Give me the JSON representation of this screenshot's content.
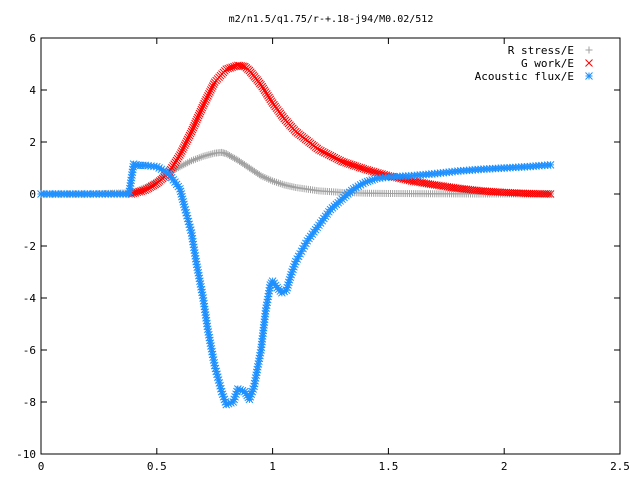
{
  "chart_data": {
    "type": "scatter",
    "title": "m2/n1.5/q1.75/r-+.18-j94/M0.02/512",
    "xlabel": "",
    "ylabel": "",
    "xlim": [
      0,
      2.5
    ],
    "ylim": [
      -10,
      6
    ],
    "x_ticks": [
      "0",
      "0.5",
      "1",
      "1.5",
      "2",
      "2.5"
    ],
    "y_ticks": [
      "-10",
      "-8",
      "-6",
      "-4",
      "-2",
      "0",
      "2",
      "4",
      "6"
    ],
    "grid": false,
    "legend_position": "top-right",
    "series": [
      {
        "name": "R stress/E",
        "marker": "plus",
        "color": "#a0a0a0",
        "x": [
          0.0,
          0.2,
          0.39,
          0.45,
          0.5,
          0.55,
          0.6,
          0.65,
          0.7,
          0.75,
          0.78,
          0.8,
          0.85,
          0.9,
          0.95,
          1.0,
          1.05,
          1.1,
          1.2,
          1.3,
          1.4,
          1.5,
          1.7,
          1.9,
          2.2
        ],
        "y": [
          0.0,
          0.0,
          0.05,
          0.25,
          0.5,
          0.8,
          1.05,
          1.28,
          1.45,
          1.57,
          1.6,
          1.55,
          1.3,
          1.0,
          0.7,
          0.5,
          0.35,
          0.25,
          0.12,
          0.06,
          0.03,
          0.02,
          0.01,
          0.0,
          0.0
        ]
      },
      {
        "name": "G work/E",
        "marker": "cross",
        "color": "#ff0000",
        "x": [
          0.39,
          0.45,
          0.5,
          0.55,
          0.6,
          0.65,
          0.7,
          0.75,
          0.8,
          0.85,
          0.88,
          0.9,
          0.95,
          1.0,
          1.05,
          1.1,
          1.2,
          1.3,
          1.4,
          1.5,
          1.6,
          1.7,
          1.8,
          1.9,
          2.0,
          2.1,
          2.2
        ],
        "y": [
          0.0,
          0.15,
          0.4,
          0.8,
          1.5,
          2.4,
          3.4,
          4.3,
          4.8,
          4.95,
          4.9,
          4.75,
          4.2,
          3.5,
          2.9,
          2.4,
          1.7,
          1.25,
          0.95,
          0.7,
          0.5,
          0.35,
          0.22,
          0.12,
          0.06,
          0.02,
          0.0
        ]
      },
      {
        "name": "Acoustic flux/E",
        "marker": "star",
        "color": "#1e90ff",
        "x": [
          0.0,
          0.2,
          0.38,
          0.4,
          0.42,
          0.45,
          0.5,
          0.55,
          0.6,
          0.62,
          0.65,
          0.67,
          0.7,
          0.72,
          0.75,
          0.78,
          0.8,
          0.83,
          0.85,
          0.88,
          0.9,
          0.92,
          0.95,
          0.97,
          0.99,
          1.0,
          1.02,
          1.04,
          1.06,
          1.08,
          1.1,
          1.15,
          1.2,
          1.25,
          1.3,
          1.35,
          1.4,
          1.45,
          1.5,
          1.6,
          1.7,
          1.8,
          1.9,
          2.0,
          2.1,
          2.2
        ],
        "y": [
          0.0,
          0.0,
          0.0,
          1.15,
          1.1,
          1.1,
          1.05,
          0.8,
          0.2,
          -0.5,
          -1.5,
          -2.6,
          -4.0,
          -5.2,
          -6.6,
          -7.6,
          -8.1,
          -8.0,
          -7.5,
          -7.6,
          -7.9,
          -7.4,
          -6.0,
          -4.5,
          -3.5,
          -3.35,
          -3.6,
          -3.8,
          -3.7,
          -3.1,
          -2.6,
          -1.8,
          -1.2,
          -0.6,
          -0.2,
          0.2,
          0.45,
          0.6,
          0.65,
          0.7,
          0.78,
          0.88,
          0.95,
          1.0,
          1.05,
          1.12
        ]
      }
    ]
  }
}
